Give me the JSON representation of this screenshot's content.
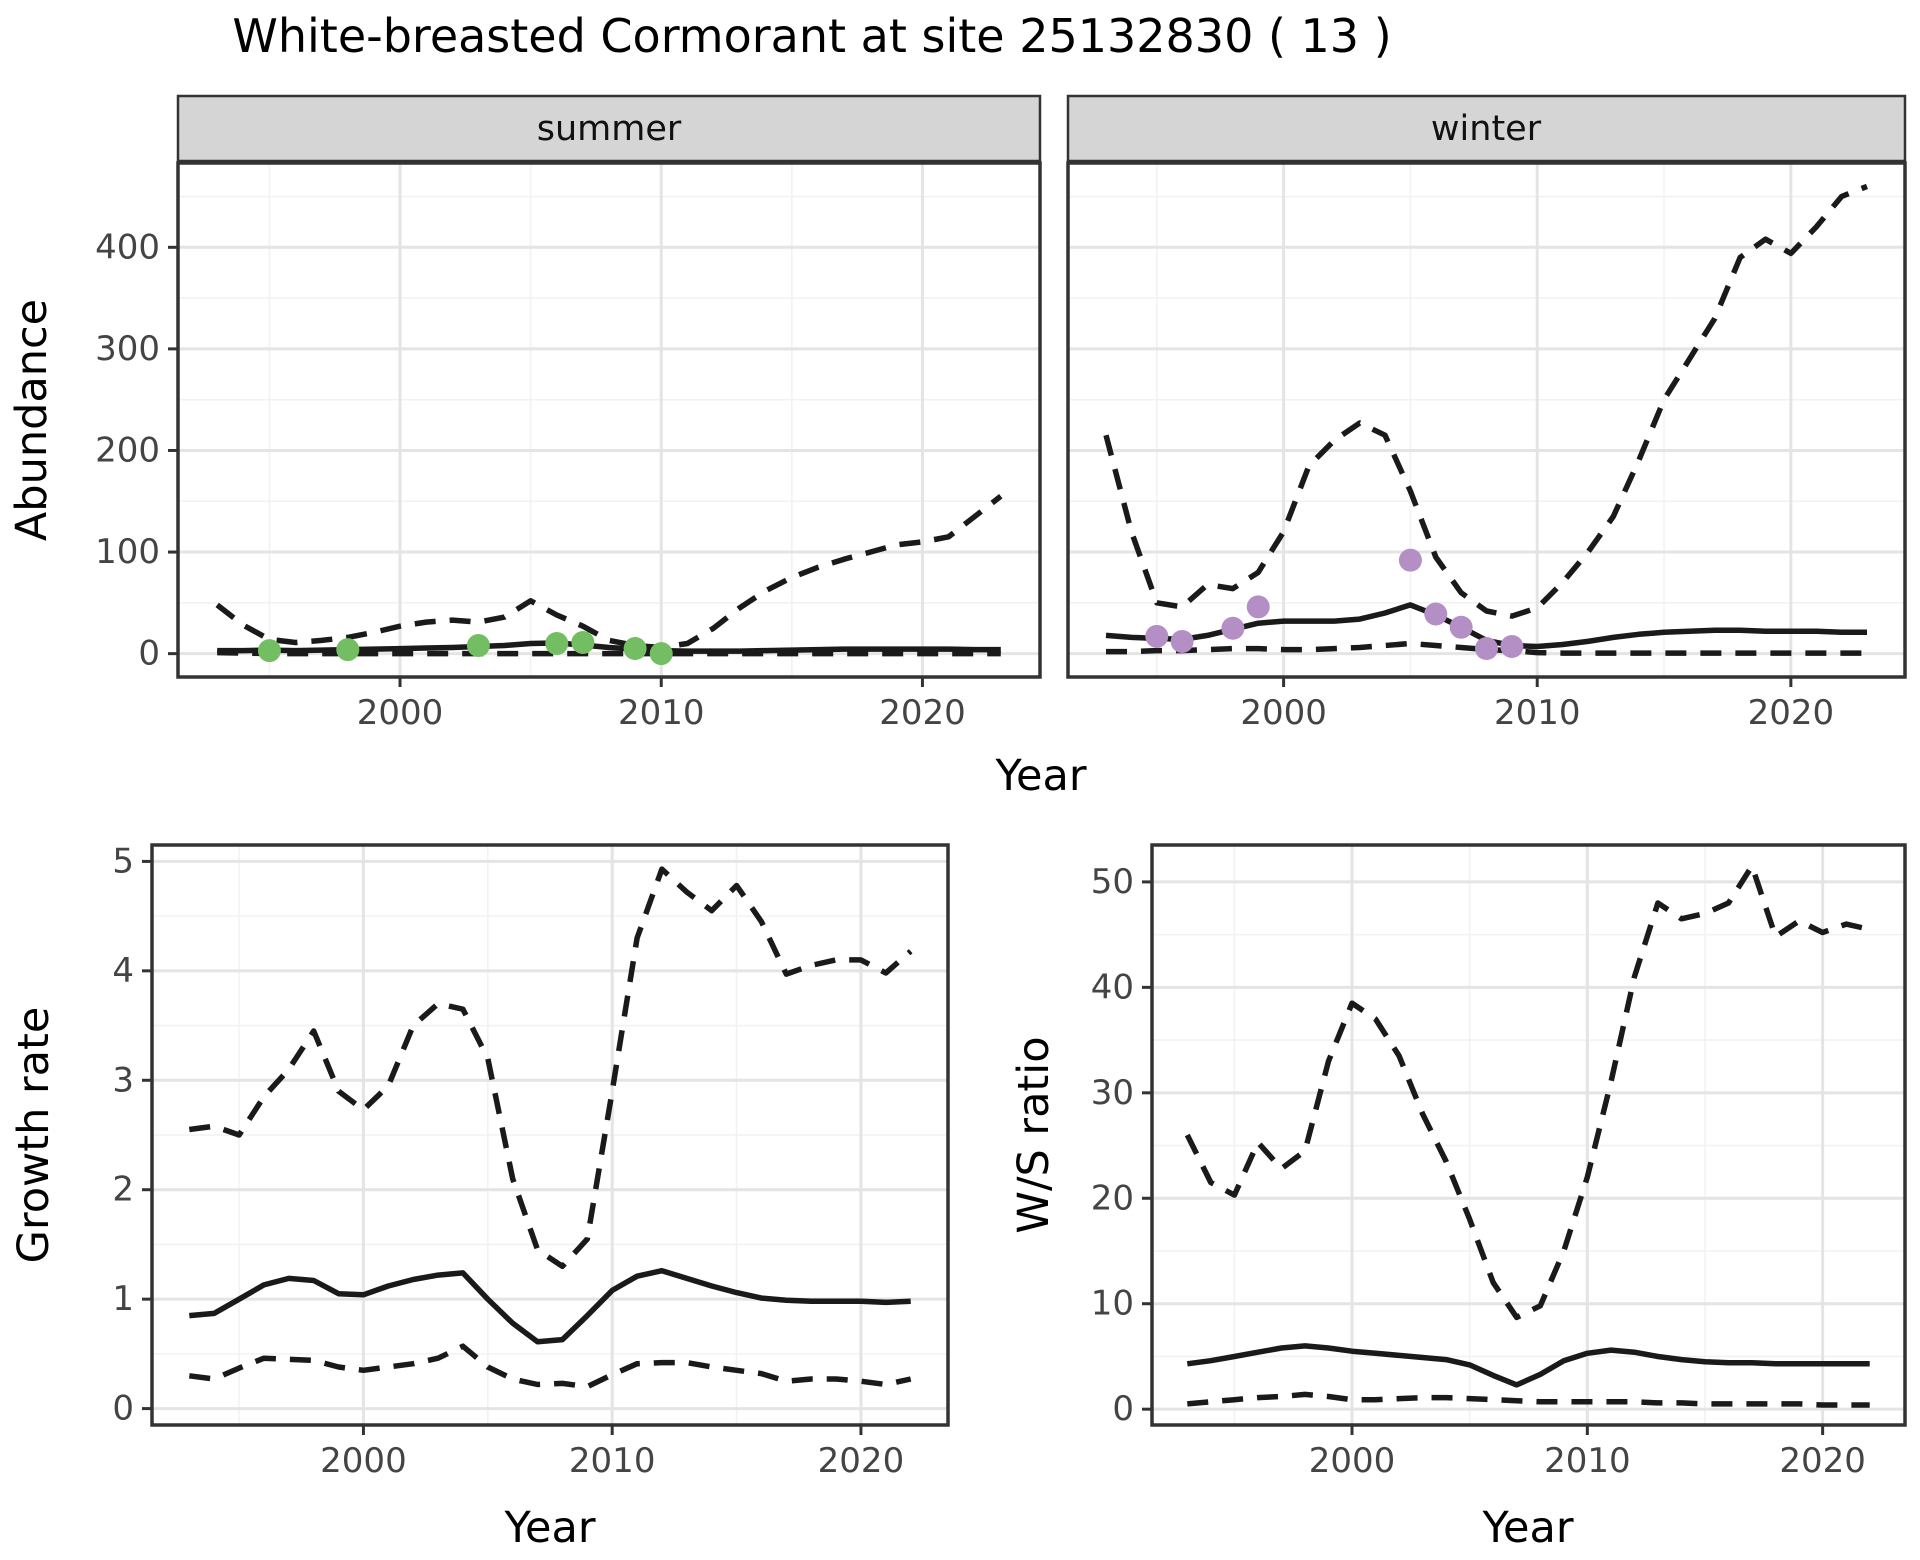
{
  "title": "White-breasted Cormorant at site 25132830 ( 13 )",
  "facets": [
    "summer",
    "winter"
  ],
  "axis_titles": {
    "y_top": "Abundance",
    "x_top": "Year",
    "y_bottom_left": "Growth rate",
    "x_bottom_left": "Year",
    "y_bottom_right": "W/S ratio",
    "x_bottom_right": "Year"
  },
  "colors": {
    "summer_point": "#73bd63",
    "winter_point": "#b48fc6",
    "line": "#1a1a1a",
    "grid_major": "#e4e4e4",
    "grid_minor": "#f2f2f2",
    "strip_bg": "#d5d5d5",
    "panel_border": "#333333",
    "tick_label": "#444444"
  },
  "chart_data": [
    {
      "type": "line",
      "panel": "abundance-summer",
      "facet_label": "summer",
      "xlabel": "Year",
      "ylabel": "Abundance",
      "xlim": [
        1991.5,
        2024.5
      ],
      "ylim": [
        -23,
        483
      ],
      "x_ticks": [
        2000,
        2010,
        2020
      ],
      "x_minor": [
        1995,
        2005,
        2015
      ],
      "y_ticks": [
        0,
        100,
        200,
        300,
        400
      ],
      "y_minor": [
        50,
        150,
        250,
        350,
        450
      ],
      "x": [
        1993,
        1994,
        1995,
        1996,
        1997,
        1998,
        1999,
        2000,
        2001,
        2002,
        2003,
        2004,
        2005,
        2006,
        2007,
        2008,
        2009,
        2010,
        2011,
        2012,
        2013,
        2014,
        2015,
        2016,
        2017,
        2018,
        2019,
        2020,
        2021,
        2022,
        2023
      ],
      "series": [
        {
          "name": "fitted median",
          "style": "solid",
          "values": [
            3,
            3,
            3.5,
            3,
            3.5,
            4,
            4.5,
            5,
            5.5,
            6,
            7,
            8,
            10,
            10.5,
            8.5,
            6,
            4.5,
            3,
            2.5,
            2.5,
            2.5,
            3,
            3.5,
            4,
            4.5,
            4.5,
            4.5,
            4.5,
            4.5,
            4,
            4
          ]
        },
        {
          "name": "upper credible bound",
          "style": "dashed",
          "values": [
            48,
            28,
            14,
            11,
            13,
            16,
            21,
            27,
            31,
            33,
            31,
            36,
            52,
            38,
            27,
            13,
            8,
            6,
            10,
            25,
            45,
            62,
            75,
            85,
            93,
            100,
            107,
            110,
            115,
            135,
            155
          ]
        },
        {
          "name": "lower credible bound",
          "style": "dashed",
          "values": [
            1,
            0.5,
            0,
            0,
            0,
            0,
            0,
            0,
            0,
            0,
            0,
            0,
            0,
            0,
            0,
            0,
            0,
            0,
            0,
            0,
            0,
            0,
            0,
            0,
            0,
            0,
            0,
            0,
            0,
            0,
            0
          ]
        }
      ],
      "points": {
        "name": "observed counts",
        "color_key": "summer_point",
        "data": [
          [
            1995,
            3
          ],
          [
            1998,
            4
          ],
          [
            2003,
            8
          ],
          [
            2006,
            10
          ],
          [
            2007,
            11
          ],
          [
            2009,
            5
          ],
          [
            2010,
            0
          ]
        ]
      }
    },
    {
      "type": "line",
      "panel": "abundance-winter",
      "facet_label": "winter",
      "xlabel": "Year",
      "ylabel": "Abundance",
      "xlim": [
        1991.5,
        2024.5
      ],
      "ylim": [
        -23,
        483
      ],
      "x_ticks": [
        2000,
        2010,
        2020
      ],
      "x_minor": [
        1995,
        2005,
        2015
      ],
      "y_ticks": [
        0,
        100,
        200,
        300,
        400
      ],
      "y_minor": [
        50,
        150,
        250,
        350,
        450
      ],
      "x": [
        1993,
        1994,
        1995,
        1996,
        1997,
        1998,
        1999,
        2000,
        2001,
        2002,
        2003,
        2004,
        2005,
        2006,
        2007,
        2008,
        2009,
        2010,
        2011,
        2012,
        2013,
        2014,
        2015,
        2016,
        2017,
        2018,
        2019,
        2020,
        2021,
        2022,
        2023
      ],
      "series": [
        {
          "name": "fitted median",
          "style": "solid",
          "values": [
            18,
            16,
            15,
            14,
            18,
            24,
            30,
            32,
            32,
            32,
            34,
            40,
            48,
            38,
            26,
            13,
            8,
            7,
            9,
            12,
            16,
            19,
            21,
            22,
            23,
            23,
            22,
            22,
            22,
            21,
            21
          ]
        },
        {
          "name": "upper credible bound",
          "style": "dashed",
          "values": [
            215,
            120,
            50,
            46,
            68,
            64,
            80,
            120,
            185,
            210,
            227,
            215,
            160,
            95,
            60,
            42,
            37,
            45,
            70,
            100,
            135,
            190,
            250,
            290,
            330,
            390,
            408,
            394,
            420,
            450,
            460
          ]
        },
        {
          "name": "lower credible bound",
          "style": "dashed",
          "values": [
            2,
            2,
            3,
            3,
            4,
            5,
            5,
            4,
            4,
            5,
            6,
            8,
            10,
            8,
            6,
            4,
            3,
            1,
            0.5,
            0.5,
            0.5,
            0.5,
            0.5,
            0.5,
            0.5,
            0.5,
            0.5,
            0.5,
            0.5,
            0.5,
            0.5
          ]
        }
      ],
      "points": {
        "name": "observed counts",
        "color_key": "winter_point",
        "data": [
          [
            1995,
            17
          ],
          [
            1996,
            12
          ],
          [
            1998,
            25
          ],
          [
            1999,
            46
          ],
          [
            2005,
            92
          ],
          [
            2006,
            39
          ],
          [
            2007,
            26
          ],
          [
            2008,
            5
          ],
          [
            2009,
            7
          ]
        ]
      }
    },
    {
      "type": "line",
      "panel": "growth-rate",
      "facet_label": "",
      "xlabel": "Year",
      "ylabel": "Growth rate",
      "xlim": [
        1991.5,
        2023.5
      ],
      "ylim": [
        -0.15,
        5.15
      ],
      "x_ticks": [
        2000,
        2010,
        2020
      ],
      "x_minor": [
        1995,
        2005,
        2015
      ],
      "y_ticks": [
        0,
        1,
        2,
        3,
        4,
        5
      ],
      "y_minor": [
        0.5,
        1.5,
        2.5,
        3.5,
        4.5
      ],
      "x": [
        1993,
        1994,
        1995,
        1996,
        1997,
        1998,
        1999,
        2000,
        2001,
        2002,
        2003,
        2004,
        2005,
        2006,
        2007,
        2008,
        2009,
        2010,
        2011,
        2012,
        2013,
        2014,
        2015,
        2016,
        2017,
        2018,
        2019,
        2020,
        2021,
        2022
      ],
      "series": [
        {
          "name": "fitted median",
          "style": "solid",
          "values": [
            0.85,
            0.87,
            1.0,
            1.13,
            1.19,
            1.17,
            1.05,
            1.04,
            1.12,
            1.18,
            1.22,
            1.24,
            1.0,
            0.78,
            0.61,
            0.63,
            0.85,
            1.08,
            1.21,
            1.26,
            1.19,
            1.12,
            1.06,
            1.01,
            0.99,
            0.98,
            0.98,
            0.98,
            0.97,
            0.98
          ]
        },
        {
          "name": "upper credible bound",
          "style": "dashed",
          "values": [
            2.55,
            2.58,
            2.5,
            2.85,
            3.1,
            3.45,
            2.9,
            2.73,
            2.95,
            3.5,
            3.7,
            3.65,
            3.2,
            2.1,
            1.45,
            1.3,
            1.55,
            2.9,
            4.3,
            4.93,
            4.72,
            4.55,
            4.78,
            4.45,
            3.97,
            4.05,
            4.1,
            4.1,
            3.98,
            4.18
          ]
        },
        {
          "name": "lower credible bound",
          "style": "dashed",
          "values": [
            0.3,
            0.27,
            0.37,
            0.46,
            0.45,
            0.44,
            0.38,
            0.35,
            0.38,
            0.41,
            0.46,
            0.57,
            0.38,
            0.27,
            0.22,
            0.23,
            0.2,
            0.31,
            0.41,
            0.42,
            0.42,
            0.38,
            0.35,
            0.32,
            0.25,
            0.27,
            0.27,
            0.25,
            0.22,
            0.27
          ]
        }
      ],
      "points": null
    },
    {
      "type": "line",
      "panel": "ws-ratio",
      "facet_label": "",
      "xlabel": "Year",
      "ylabel": "W/S ratio",
      "xlim": [
        1991.5,
        2023.5
      ],
      "ylim": [
        -1.5,
        53.5
      ],
      "x_ticks": [
        2000,
        2010,
        2020
      ],
      "x_minor": [
        1995,
        2005,
        2015
      ],
      "y_ticks": [
        0,
        10,
        20,
        30,
        40,
        50
      ],
      "y_minor": [
        5,
        15,
        25,
        35,
        45
      ],
      "x": [
        1993,
        1994,
        1995,
        1996,
        1997,
        1998,
        1999,
        2000,
        2001,
        2002,
        2003,
        2004,
        2005,
        2006,
        2007,
        2008,
        2009,
        2010,
        2011,
        2012,
        2013,
        2014,
        2015,
        2016,
        2017,
        2018,
        2019,
        2020,
        2021,
        2022
      ],
      "series": [
        {
          "name": "fitted median",
          "style": "solid",
          "values": [
            4.3,
            4.6,
            5.0,
            5.4,
            5.8,
            6.0,
            5.8,
            5.5,
            5.3,
            5.1,
            4.9,
            4.7,
            4.2,
            3.2,
            2.3,
            3.3,
            4.6,
            5.3,
            5.6,
            5.4,
            5.0,
            4.7,
            4.5,
            4.4,
            4.4,
            4.3,
            4.3,
            4.3,
            4.3,
            4.3
          ]
        },
        {
          "name": "upper credible bound",
          "style": "dashed",
          "values": [
            26,
            21.5,
            20.3,
            25.3,
            22.8,
            24.5,
            33,
            38.5,
            37,
            33.5,
            28,
            23.5,
            18,
            12,
            8.7,
            9.8,
            15,
            22,
            31,
            41,
            48,
            46.5,
            47,
            48,
            51.5,
            44.8,
            46.3,
            45.2,
            46,
            45.5
          ]
        },
        {
          "name": "lower credible bound",
          "style": "dashed",
          "values": [
            0.5,
            0.7,
            0.9,
            1.1,
            1.2,
            1.4,
            1.2,
            0.9,
            0.9,
            1.0,
            1.1,
            1.1,
            1.0,
            0.9,
            0.8,
            0.7,
            0.7,
            0.7,
            0.7,
            0.7,
            0.6,
            0.6,
            0.5,
            0.5,
            0.5,
            0.5,
            0.5,
            0.4,
            0.4,
            0.4
          ]
        }
      ],
      "points": null
    }
  ]
}
